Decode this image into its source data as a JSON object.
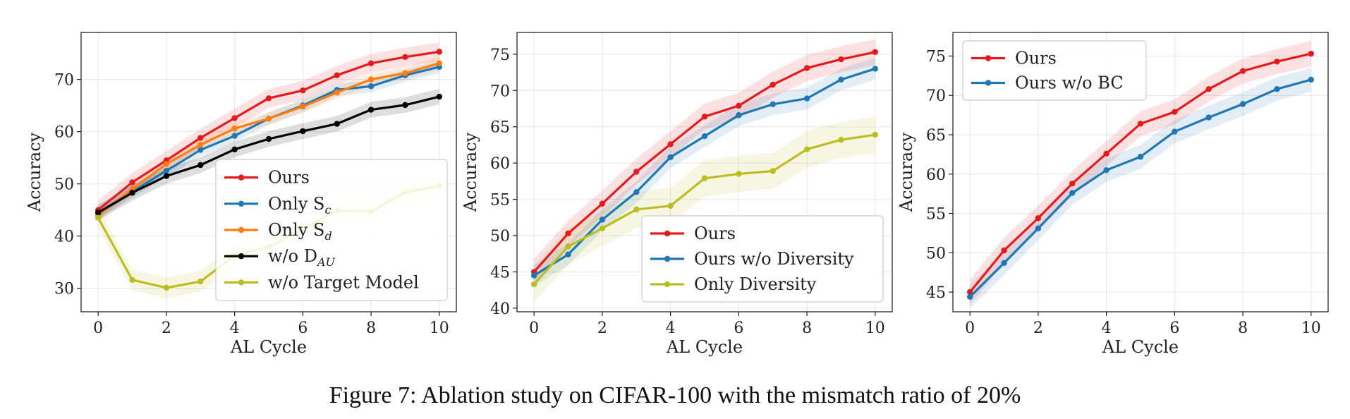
{
  "caption": "Figure 7: Ablation study on CIFAR-100 with the mismatch ratio of 20%",
  "colors": {
    "red": "#e41a1c",
    "blue": "#1f77b4",
    "orange": "#ff7f0e",
    "black": "#000000",
    "olive": "#bcbd22"
  },
  "chart_data": [
    {
      "type": "line",
      "xlabel": "AL Cycle",
      "ylabel": "Accuracy",
      "xlim": [
        -0.5,
        10.5
      ],
      "ylim": [
        25.5,
        79
      ],
      "xticks": [
        0,
        2,
        4,
        6,
        8,
        10
      ],
      "yticks": [
        30,
        40,
        50,
        60,
        70
      ],
      "grid": true,
      "legend_position": "lower-right",
      "series": [
        {
          "name": "Ours",
          "color": "#e41a1c",
          "band": 1.8,
          "x": [
            0,
            1,
            2,
            3,
            4,
            5,
            6,
            7,
            8,
            9,
            10
          ],
          "y": [
            45.0,
            50.3,
            54.5,
            58.8,
            62.6,
            66.4,
            67.9,
            70.8,
            73.1,
            74.3,
            75.3
          ]
        },
        {
          "name": "Only S_c",
          "color": "#1f77b4",
          "band": 1.2,
          "x": [
            0,
            1,
            2,
            3,
            4,
            5,
            6,
            7,
            8,
            9,
            10
          ],
          "y": [
            44.5,
            48.5,
            52.5,
            56.5,
            59.2,
            62.5,
            65.0,
            68.0,
            68.7,
            70.8,
            72.4
          ]
        },
        {
          "name": "Only S_d",
          "color": "#ff7f0e",
          "band": 1.2,
          "x": [
            0,
            1,
            2,
            3,
            4,
            5,
            6,
            7,
            8,
            9,
            10
          ],
          "y": [
            44.0,
            49.0,
            53.8,
            57.5,
            60.6,
            62.5,
            64.8,
            67.5,
            70.0,
            71.2,
            73.1
          ]
        },
        {
          "name": "w/o D_AU",
          "color": "#000000",
          "band": 1.5,
          "x": [
            0,
            1,
            2,
            3,
            4,
            5,
            6,
            7,
            8,
            9,
            10
          ],
          "y": [
            44.5,
            48.3,
            51.5,
            53.6,
            56.6,
            58.6,
            60.1,
            61.5,
            64.2,
            65.1,
            66.7
          ]
        },
        {
          "name": "w/o Target Model",
          "color": "#bcbd22",
          "band": 2.0,
          "x": [
            0,
            1,
            2,
            3,
            4,
            5,
            6,
            7,
            8,
            9,
            10
          ],
          "y": [
            43.5,
            31.6,
            30.1,
            31.3,
            36.3,
            37.9,
            41.4,
            44.9,
            44.7,
            48.4,
            49.6
          ]
        }
      ],
      "legend": [
        {
          "label": "Ours",
          "sub": ""
        },
        {
          "label": "Only S",
          "sub": "c"
        },
        {
          "label": "Only S",
          "sub": "d"
        },
        {
          "label": "w/o D",
          "sub": "AU"
        },
        {
          "label": "w/o Target Model",
          "sub": ""
        }
      ]
    },
    {
      "type": "line",
      "xlabel": "AL Cycle",
      "ylabel": "Accuracy",
      "xlim": [
        -0.5,
        10.5
      ],
      "ylim": [
        39.5,
        78
      ],
      "xticks": [
        0,
        2,
        4,
        6,
        8,
        10
      ],
      "yticks": [
        40,
        45,
        50,
        55,
        60,
        65,
        70,
        75
      ],
      "grid": true,
      "legend_position": "lower-right",
      "series": [
        {
          "name": "Ours",
          "color": "#e41a1c",
          "band": 1.8,
          "x": [
            0,
            1,
            2,
            3,
            4,
            5,
            6,
            7,
            8,
            9,
            10
          ],
          "y": [
            45.0,
            50.3,
            54.4,
            58.8,
            62.6,
            66.4,
            67.9,
            70.8,
            73.1,
            74.3,
            75.3
          ]
        },
        {
          "name": "Ours w/o Diversity",
          "color": "#1f77b4",
          "band": 1.5,
          "x": [
            0,
            1,
            2,
            3,
            4,
            5,
            6,
            7,
            8,
            9,
            10
          ],
          "y": [
            44.5,
            47.4,
            52.2,
            56.0,
            60.8,
            63.7,
            66.6,
            68.1,
            68.9,
            71.5,
            73.0
          ]
        },
        {
          "name": "Only Diversity",
          "color": "#bcbd22",
          "band": 2.5,
          "x": [
            0,
            1,
            2,
            3,
            4,
            5,
            6,
            7,
            8,
            9,
            10
          ],
          "y": [
            43.3,
            48.5,
            51.0,
            53.6,
            54.1,
            57.9,
            58.5,
            58.9,
            61.9,
            63.2,
            63.9
          ]
        }
      ],
      "legend": [
        {
          "label": "Ours",
          "sub": ""
        },
        {
          "label": "Ours w/o Diversity",
          "sub": ""
        },
        {
          "label": "Only Diversity",
          "sub": ""
        }
      ]
    },
    {
      "type": "line",
      "xlabel": "AL Cycle",
      "ylabel": "Accuracy",
      "xlim": [
        -0.5,
        10.5
      ],
      "ylim": [
        42.5,
        78
      ],
      "xticks": [
        0,
        2,
        4,
        6,
        8,
        10
      ],
      "yticks": [
        45,
        50,
        55,
        60,
        65,
        70,
        75
      ],
      "grid": true,
      "legend_position": "upper-left",
      "series": [
        {
          "name": "Ours",
          "color": "#e41a1c",
          "band": 1.6,
          "x": [
            0,
            1,
            2,
            3,
            4,
            5,
            6,
            7,
            8,
            9,
            10
          ],
          "y": [
            45.0,
            50.3,
            54.4,
            58.8,
            62.6,
            66.4,
            67.9,
            70.8,
            73.1,
            74.3,
            75.3
          ]
        },
        {
          "name": "Ours w/o BC",
          "color": "#1f77b4",
          "band": 1.5,
          "x": [
            0,
            1,
            2,
            3,
            4,
            5,
            6,
            7,
            8,
            9,
            10
          ],
          "y": [
            44.4,
            48.7,
            53.1,
            57.6,
            60.5,
            62.2,
            65.4,
            67.2,
            68.9,
            70.8,
            72.0
          ]
        }
      ],
      "legend": [
        {
          "label": "Ours",
          "sub": ""
        },
        {
          "label": "Ours w/o BC",
          "sub": ""
        }
      ]
    }
  ]
}
